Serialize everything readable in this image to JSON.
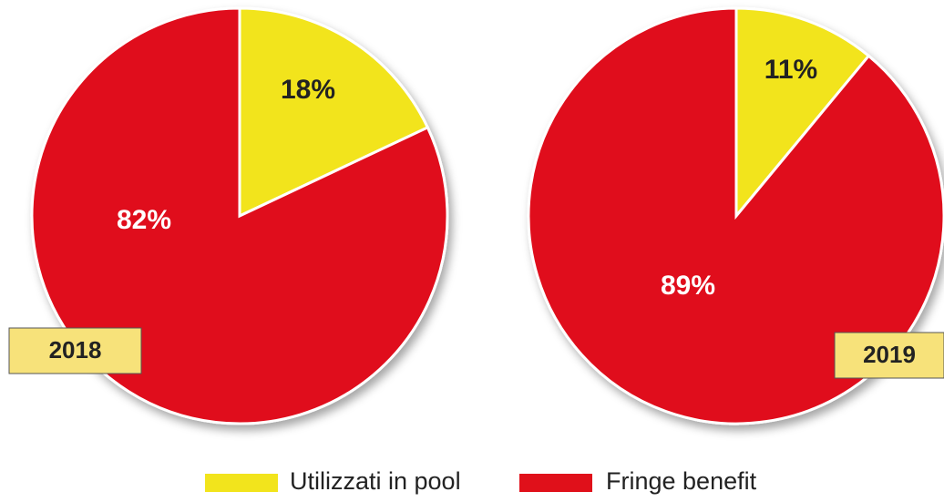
{
  "chart_data": [
    {
      "type": "pie",
      "title": "2018",
      "categories": [
        "Utilizzati in pool",
        "Fringe benefit"
      ],
      "values": [
        18,
        82
      ],
      "value_labels": [
        "18%",
        "82%"
      ],
      "colors": [
        "#f2e41c",
        "#e0101a"
      ]
    },
    {
      "type": "pie",
      "title": "2019",
      "categories": [
        "Utilizzati in pool",
        "Fringe benefit"
      ],
      "values": [
        11,
        89
      ],
      "value_labels": [
        "11%",
        "89%"
      ],
      "colors": [
        "#f2e41c",
        "#e0101a"
      ]
    }
  ]
}
